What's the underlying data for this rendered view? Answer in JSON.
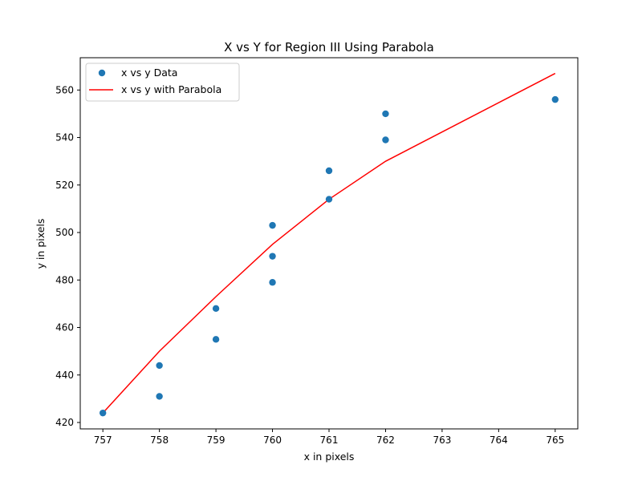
{
  "chart_data": {
    "type": "scatter",
    "title": "X vs Y for Region III Using Parabola",
    "xlabel": "x in pixels",
    "ylabel": "y in pixels",
    "xlim": [
      756.6,
      765.4
    ],
    "ylim": [
      417.3,
      573.6
    ],
    "xticks": [
      757,
      758,
      759,
      760,
      761,
      762,
      763,
      764,
      765
    ],
    "yticks": [
      420,
      440,
      460,
      480,
      500,
      520,
      540,
      560
    ],
    "grid": false,
    "legend_position": "top-left",
    "colors": {
      "scatter": "#1f77b4",
      "line": "#ff0000"
    },
    "series": [
      {
        "name": "x vs y Data",
        "kind": "scatter",
        "x": [
          757,
          758,
          758,
          759,
          759,
          760,
          760,
          760,
          761,
          761,
          762,
          762,
          765
        ],
        "y": [
          424,
          431,
          444,
          455,
          468,
          479,
          490,
          503,
          514,
          526,
          539,
          550,
          556
        ]
      },
      {
        "name": "x vs y with Parabola",
        "kind": "line",
        "x": [
          757,
          758,
          759,
          760,
          761,
          762,
          765
        ],
        "y": [
          424,
          450,
          473,
          495,
          514,
          530,
          567
        ]
      }
    ]
  }
}
